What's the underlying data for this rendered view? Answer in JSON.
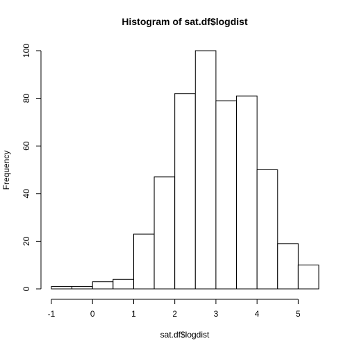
{
  "chart_data": {
    "type": "bar",
    "title": "Histogram of sat.df$logdist",
    "xlabel": "sat.df$logdist",
    "ylabel": "Frequency",
    "bin_edges": [
      -1,
      -0.5,
      0,
      0.5,
      1,
      1.5,
      2,
      2.5,
      3,
      3.5,
      4,
      4.5,
      5,
      5.5
    ],
    "values": [
      1,
      1,
      3,
      4,
      23,
      47,
      82,
      100,
      79,
      81,
      50,
      19,
      10
    ],
    "x_ticks": [
      -1,
      0,
      1,
      2,
      3,
      4,
      5
    ],
    "x_tick_labels": [
      "-1",
      "0",
      "1",
      "2",
      "3",
      "4",
      "5"
    ],
    "y_ticks": [
      0,
      20,
      40,
      60,
      80,
      100
    ],
    "y_tick_labels": [
      "0",
      "20",
      "40",
      "60",
      "80",
      "100"
    ],
    "xlim": [
      -1,
      5.5
    ],
    "ylim": [
      0,
      100
    ],
    "grid": false,
    "bar_fill": "#ffffff",
    "bar_stroke": "#000000"
  }
}
